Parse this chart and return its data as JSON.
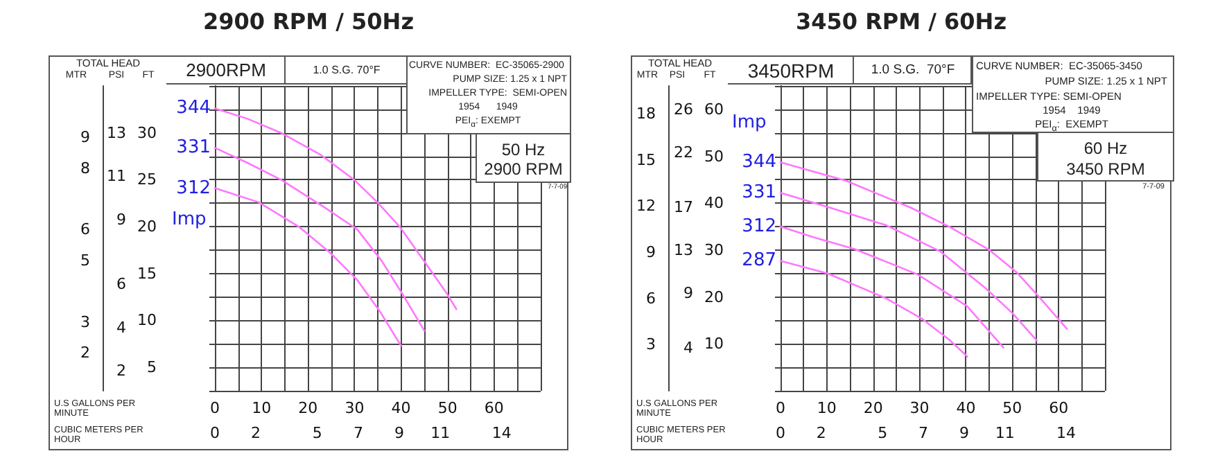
{
  "chart_data": [
    {
      "type": "line",
      "title": "2900 RPM / 50Hz",
      "xlabel": "U.S GALLONS PER MINUTE",
      "x2label": "CUBIC METERS PER HOUR",
      "ylabel": "FT",
      "y2label": "PSI",
      "y3label": "MTR",
      "legend_title": "Imp",
      "annotations": [
        "TOTAL HEAD",
        "2900RPM",
        "1.0 S.G. 70°F",
        "CURVE NUMBER:  EC-35065-2900",
        "PUMP SIZE: 1.25 x 1 NPT",
        "IMPELLER TYPE:  SEMI-OPEN",
        "1954      1949",
        "PEI$_{α}$: EXEMPT",
        "50 Hz",
        "2900 RPM",
        "7-7-09"
      ],
      "xlim": [
        0,
        70
      ],
      "xticks": [
        0,
        {
          "value": 5,
          "label": null
        },
        10,
        {
          "value": 15,
          "label": null
        },
        20,
        {
          "value": 25,
          "label": null
        },
        30,
        {
          "value": 35,
          "label": null
        },
        40,
        {
          "value": 45,
          "label": null
        },
        50,
        {
          "value": 55,
          "label": null
        },
        60,
        {
          "value": 65,
          "label": null
        },
        {
          "value": 70,
          "label": null
        }
      ],
      "x2lim": [
        0,
        15.9
      ],
      "x2ticks": [
        0,
        2,
        5,
        7,
        9,
        11,
        14
      ],
      "ylim": [
        2.5,
        35
      ],
      "yticks": [
        {
          "value": 2.5,
          "label": null
        },
        5,
        {
          "value": 7.5,
          "label": null
        },
        10,
        {
          "value": 12.5,
          "label": null
        },
        15,
        {
          "value": 17.5,
          "label": null
        },
        20,
        {
          "value": 22.5,
          "label": null
        },
        25,
        {
          "value": 27.5,
          "label": null
        },
        30,
        {
          "value": 32.5,
          "label": null
        },
        {
          "value": 35,
          "label": null
        }
      ],
      "y2lim": [
        1.08,
        15.17
      ],
      "y2ticks": [
        2,
        4,
        6,
        9,
        11,
        13
      ],
      "y3lim": [
        0.76,
        10.67
      ],
      "y3ticks": [
        2,
        3,
        5,
        6,
        8,
        9
      ],
      "grid": true,
      "legend": false,
      "marker": "none",
      "line_style": "solid",
      "series": [
        {
          "name": "344",
          "color": "#ff77ff",
          "x": [
            0,
            7,
            14.2,
            22.9,
            29.9,
            34.9,
            39.7,
            45,
            49.8,
            51.9
          ],
          "values": [
            32.6,
            31.5,
            30,
            27.6,
            25,
            22.6,
            20,
            16.3,
            12.9,
            11.2
          ]
        },
        {
          "name": "331",
          "color": "#ff77ff",
          "x": [
            0,
            7,
            14.2,
            23.4,
            30.6,
            35.9,
            40.2,
            45
          ],
          "values": [
            28.4,
            26.8,
            25,
            22.1,
            19.7,
            16.3,
            12.9,
            8.9
          ]
        },
        {
          "name": "312",
          "color": "#ff77ff",
          "x": [
            0,
            9.4,
            18,
            24.8,
            30.6,
            35.4,
            40
          ],
          "values": [
            24.1,
            22.6,
            20,
            17.2,
            14.3,
            11,
            7.3
          ]
        }
      ]
    },
    {
      "type": "line",
      "title": "3450 RPM / 60Hz",
      "xlabel": "U.S GALLONS PER MINUTE",
      "x2label": "CUBIC METERS PER HOUR",
      "ylabel": "FT",
      "y2label": "PSI",
      "y3label": "MTR",
      "legend_title": "Imp",
      "annotations": [
        "TOTAL HEAD",
        "3450RPM",
        "1.0 S.G.  70°F",
        "CURVE NUMBER:  EC-35065-3450",
        "PUMP SIZE: 1.25 x 1 NPT",
        "IMPELLER TYPE: SEMI-OPEN",
        "1954    1949",
        "PEI$_{α}$:  EXEMPT",
        "60 Hz",
        "3450 RPM",
        "7-7-09"
      ],
      "xlim": [
        0,
        70
      ],
      "xticks": [
        0,
        {
          "value": 5,
          "label": null
        },
        10,
        {
          "value": 15,
          "label": null
        },
        20,
        {
          "value": 25,
          "label": null
        },
        30,
        {
          "value": 35,
          "label": null
        },
        40,
        {
          "value": 45,
          "label": null
        },
        50,
        {
          "value": 55,
          "label": null
        },
        60,
        {
          "value": 65,
          "label": null
        },
        {
          "value": 70,
          "label": null
        }
      ],
      "x2lim": [
        0,
        15.9
      ],
      "x2ticks": [
        0,
        2,
        5,
        7,
        9,
        11,
        14
      ],
      "ylim": [
        0,
        65
      ],
      "yticks": [
        {
          "value": 0,
          "label": null
        },
        {
          "value": 5,
          "label": null
        },
        10,
        {
          "value": 15,
          "label": null
        },
        20,
        {
          "value": 25,
          "label": null
        },
        30,
        {
          "value": 35,
          "label": null
        },
        40,
        {
          "value": 45,
          "label": null
        },
        50,
        {
          "value": 55,
          "label": null
        },
        60,
        {
          "value": 65,
          "label": null
        }
      ],
      "y2lim": [
        0,
        28.18
      ],
      "y2ticks": [
        4,
        9,
        13,
        17,
        22,
        26
      ],
      "y3lim": [
        0,
        19.81
      ],
      "y3ticks": [
        3,
        6,
        9,
        12,
        15,
        18
      ],
      "grid": true,
      "legend": false,
      "marker": "none",
      "line_style": "solid",
      "series": [
        {
          "name": "344",
          "color": "#ff77ff",
          "x": [
            0,
            14.1,
            28.2,
            36.4,
            45.1,
            50.9,
            55.8,
            59.7,
            61.8
          ],
          "values": [
            48.7,
            44.8,
            39,
            35,
            30,
            25.3,
            20,
            15.6,
            13.2
          ]
        },
        {
          "name": "331",
          "color": "#ff77ff",
          "x": [
            0,
            10.2,
            22.8,
            34.5,
            44.2,
            50,
            55.3
          ],
          "values": [
            42.2,
            39.2,
            35.3,
            29.7,
            21.9,
            16.6,
            10.7
          ]
        },
        {
          "name": "312",
          "color": "#ff77ff",
          "x": [
            0,
            7.3,
            16,
            29.6,
            40.3,
            48.1
          ],
          "values": [
            35,
            32.7,
            30.2,
            24.8,
            18,
            9.2
          ]
        },
        {
          "name": "287",
          "color": "#ff77ff",
          "x": [
            0,
            10.2,
            22.8,
            30.6,
            36.4,
            40.3
          ],
          "values": [
            27.7,
            25,
            19.7,
            15.3,
            10.9,
            7.3
          ]
        }
      ]
    }
  ]
}
